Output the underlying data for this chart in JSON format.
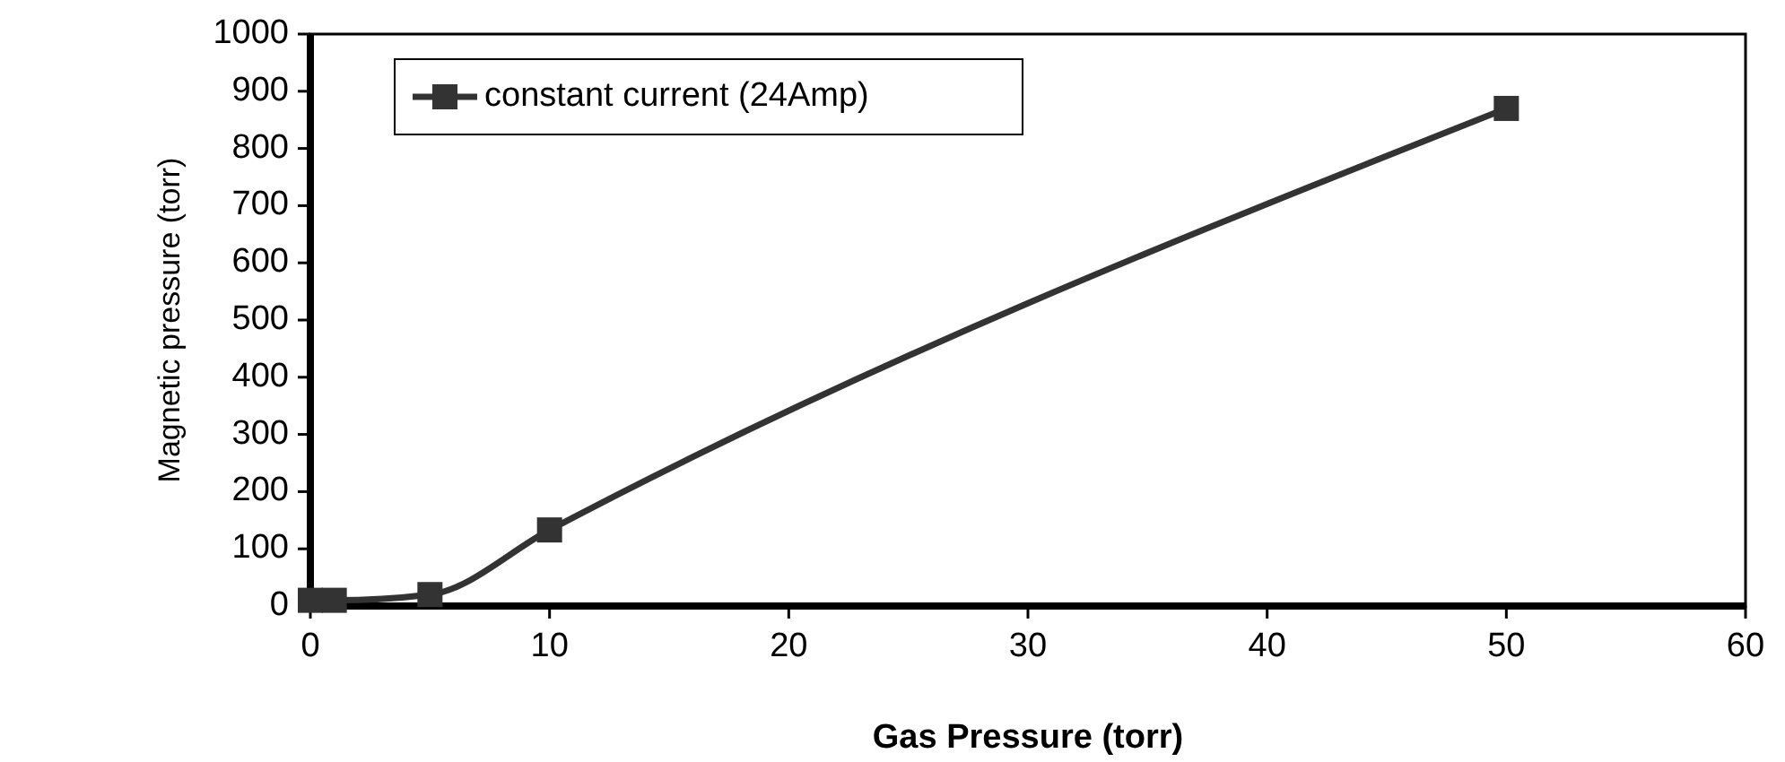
{
  "chart_data": {
    "type": "line",
    "xlabel": "Gas Pressure (torr)",
    "ylabel": "Magnetic pressure (torr)",
    "x": [
      0,
      1,
      5,
      10,
      50
    ],
    "series": [
      {
        "name": "constant current (24Amp)",
        "color": "#333333",
        "values": [
          10,
          10,
          20,
          133,
          870
        ]
      }
    ],
    "xlim": [
      0,
      60
    ],
    "xticks": [
      0,
      10,
      20,
      30,
      40,
      50,
      60
    ],
    "ylim": [
      0,
      1000
    ],
    "yticks": [
      0,
      100,
      200,
      300,
      400,
      500,
      600,
      700,
      800,
      900,
      1000
    ],
    "marker": "square",
    "line_style": "solid",
    "legend": "top left",
    "grid": false
  }
}
